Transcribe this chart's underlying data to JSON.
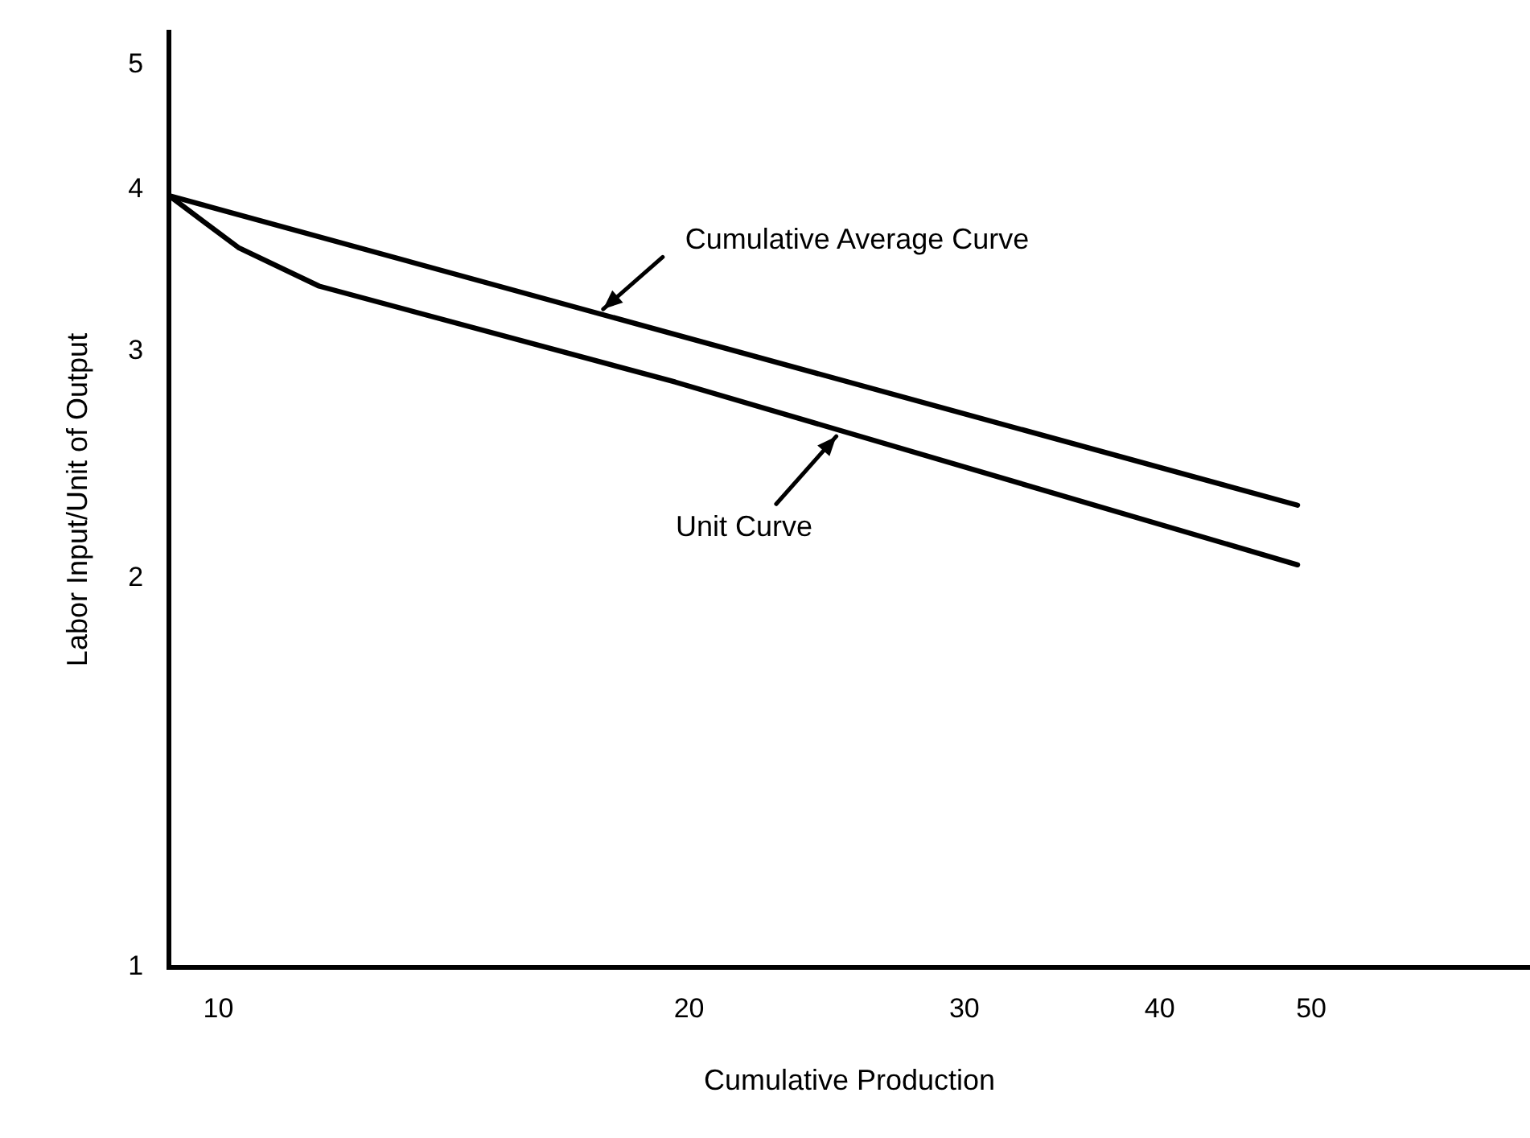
{
  "chart_data": {
    "type": "line",
    "xlabel": "Cumulative Production",
    "ylabel": "Labor Input/Unit of Output",
    "log": "xy",
    "xlim": [
      9.3,
      69
    ],
    "xticks": [
      10,
      20,
      30,
      40,
      50
    ],
    "ylim": [
      1,
      5.3
    ],
    "yticks": [
      1,
      2,
      3,
      4,
      5
    ],
    "grid": false,
    "legend": false,
    "marker": "none",
    "series": [
      {
        "color": "#000000",
        "x": [
          9.3,
          49
        ],
        "values": [
          3.96,
          2.28
        ]
      },
      {
        "color": "#000000",
        "x": [
          9.3,
          10.3,
          11.6,
          19.6,
          49
        ],
        "values": [
          3.96,
          3.61,
          3.37,
          2.84,
          2.05
        ]
      }
    ],
    "annotations": [
      {
        "text": "Cumulative Average Curve",
        "x": 17.5,
        "y": 3.21
      },
      {
        "text": "Unit Curve",
        "x": 25,
        "y": 2.6
      }
    ]
  }
}
